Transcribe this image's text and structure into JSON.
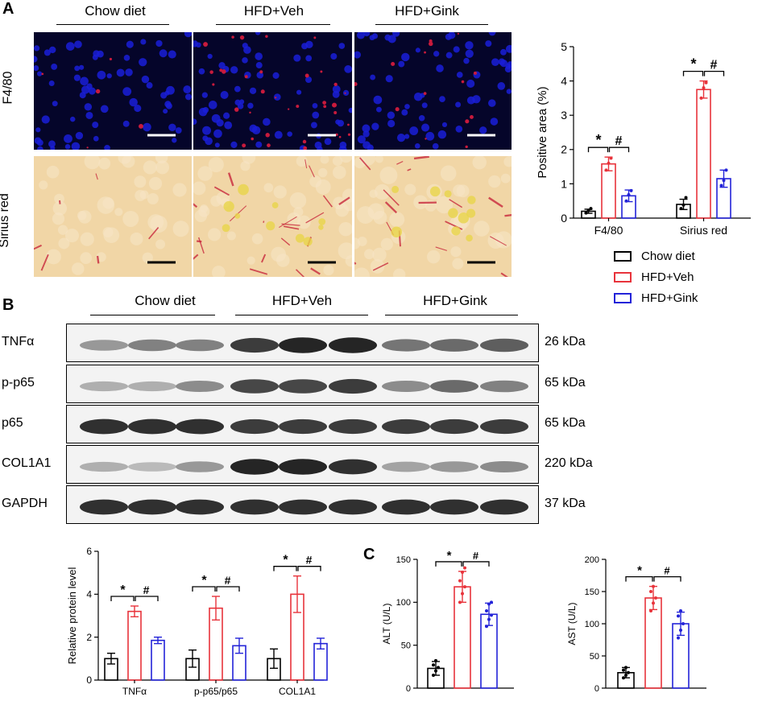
{
  "panels": {
    "a": "A",
    "b": "B",
    "c": "C"
  },
  "colors": {
    "chow": "#000000",
    "hfd_veh": "#e8333b",
    "hfd_gink": "#2323d8",
    "f480_bg": "#05052a",
    "nucleus": "#1a1fd8",
    "f480_signal": "#c81a3c",
    "sirius_bg": "#f1d6a6",
    "sirius_signal": "#c8283c"
  },
  "groups": [
    "Chow diet",
    "HFD+Veh",
    "HFD+Gink"
  ],
  "stain_rows": [
    "F4/80",
    "Sirius red"
  ],
  "western": {
    "groups": [
      "Chow diet",
      "HFD+Veh",
      "HFD+Gink"
    ],
    "bands": [
      {
        "label": "TNFα",
        "kda": "26 kDa",
        "intensity": [
          0.45,
          0.55,
          0.55,
          0.85,
          0.95,
          0.95,
          0.6,
          0.65,
          0.7
        ]
      },
      {
        "label": "p-p65",
        "kda": "65 kDa",
        "intensity": [
          0.35,
          0.35,
          0.5,
          0.8,
          0.8,
          0.85,
          0.5,
          0.65,
          0.55
        ]
      },
      {
        "label": "p65",
        "kda": "65 kDa",
        "intensity": [
          0.9,
          0.9,
          0.9,
          0.85,
          0.85,
          0.85,
          0.85,
          0.85,
          0.85
        ]
      },
      {
        "label": "COL1A1",
        "kda": "220 kDa",
        "intensity": [
          0.35,
          0.3,
          0.45,
          0.95,
          0.95,
          0.9,
          0.4,
          0.45,
          0.5
        ]
      },
      {
        "label": "GAPDH",
        "kda": "37 kDa",
        "intensity": [
          0.9,
          0.9,
          0.9,
          0.9,
          0.9,
          0.9,
          0.9,
          0.9,
          0.9
        ]
      }
    ]
  },
  "legend": [
    "Chow diet",
    "HFD+Veh",
    "HFD+Gink"
  ],
  "chart_data": [
    {
      "type": "bar",
      "ylabel": "Positive area (%)",
      "ylim": [
        0,
        5
      ],
      "yticks": [
        0,
        1,
        2,
        3,
        4,
        5
      ],
      "categories": [
        "F4/80",
        "Sirius red"
      ],
      "series": [
        {
          "name": "Chow diet",
          "values": [
            0.2,
            0.4
          ],
          "err": [
            0.06,
            0.15
          ],
          "points": [
            [
              0.15,
              0.22,
              0.28
            ],
            [
              0.28,
              0.38,
              0.6
            ]
          ]
        },
        {
          "name": "HFD+Veh",
          "values": [
            1.58,
            3.75
          ],
          "err": [
            0.2,
            0.25
          ],
          "points": [
            [
              1.4,
              1.6,
              1.75
            ],
            [
              3.5,
              3.8,
              3.95
            ]
          ]
        },
        {
          "name": "HFD+Gink",
          "values": [
            0.65,
            1.15
          ],
          "err": [
            0.17,
            0.25
          ],
          "points": [
            [
              0.5,
              0.68,
              0.8
            ],
            [
              0.95,
              1.1,
              1.4
            ]
          ]
        }
      ],
      "annotations": [
        {
          "category": "F4/80",
          "star": "*",
          "hash": "#"
        },
        {
          "category": "Sirius red",
          "star": "*",
          "hash": "#"
        }
      ]
    },
    {
      "type": "bar",
      "ylabel": "Relative protein level",
      "ylim": [
        0,
        6
      ],
      "yticks": [
        0,
        2,
        4,
        6
      ],
      "categories": [
        "TNFα",
        "p-p65/p65",
        "COL1A1"
      ],
      "series": [
        {
          "name": "Chow diet",
          "values": [
            1.0,
            1.0,
            1.0
          ],
          "err": [
            0.25,
            0.4,
            0.45
          ]
        },
        {
          "name": "HFD+Veh",
          "values": [
            3.2,
            3.35,
            4.0
          ],
          "err": [
            0.25,
            0.55,
            0.85
          ]
        },
        {
          "name": "HFD+Gink",
          "values": [
            1.85,
            1.6,
            1.7
          ],
          "err": [
            0.15,
            0.35,
            0.25
          ]
        }
      ],
      "annotations": [
        {
          "category": "TNFα",
          "star": "*",
          "hash": "#"
        },
        {
          "category": "p-p65/p65",
          "star": "*",
          "hash": "#"
        },
        {
          "category": "COL1A1",
          "star": "*",
          "hash": "#"
        }
      ]
    },
    {
      "type": "bar",
      "ylabel": "ALT (U/L)",
      "ylim": [
        0,
        150
      ],
      "yticks": [
        0,
        50,
        100,
        150
      ],
      "categories": [
        ""
      ],
      "series": [
        {
          "name": "Chow diet",
          "values": [
            23
          ],
          "err": [
            8
          ],
          "points": [
            [
              15,
              20,
              24,
              27,
              32
            ]
          ]
        },
        {
          "name": "HFD+Veh",
          "values": [
            118
          ],
          "err": [
            18
          ],
          "points": [
            [
              100,
              110,
              118,
              125,
              135,
              140
            ]
          ]
        },
        {
          "name": "HFD+Gink",
          "values": [
            86
          ],
          "err": [
            13
          ],
          "points": [
            [
              72,
              80,
              85,
              90,
              98,
              100
            ]
          ]
        }
      ],
      "annotations": [
        {
          "star": "*",
          "hash": "#"
        }
      ]
    },
    {
      "type": "bar",
      "ylabel": "AST (U/L)",
      "ylim": [
        0,
        200
      ],
      "yticks": [
        0,
        50,
        100,
        150,
        200
      ],
      "categories": [
        ""
      ],
      "series": [
        {
          "name": "Chow diet",
          "values": [
            24
          ],
          "err": [
            8
          ],
          "points": [
            [
              16,
              20,
              24,
              28,
              32
            ]
          ]
        },
        {
          "name": "HFD+Veh",
          "values": [
            140
          ],
          "err": [
            18
          ],
          "points": [
            [
              120,
              132,
              140,
              150,
              158
            ]
          ]
        },
        {
          "name": "HFD+Gink",
          "values": [
            100
          ],
          "err": [
            18
          ],
          "points": [
            [
              78,
              90,
              100,
              112,
              120
            ]
          ]
        }
      ],
      "annotations": [
        {
          "star": "*",
          "hash": "#"
        }
      ]
    }
  ]
}
